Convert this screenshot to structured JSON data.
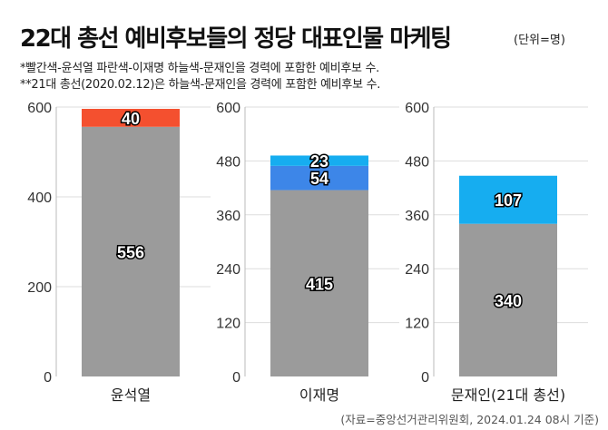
{
  "title": "22대 총선 예비후보들의 정당 대표인물 마케팅",
  "unit": "(단위=명)",
  "notes": [
    "*빨간색-윤석열 파란색-이재명 하늘색-문재인을 경력에 포함한 예비후보 수.",
    "**21대 총선(2020.02.12)은 하늘색-문재인을 경력에 포함한  예비후보 수."
  ],
  "source": "(자료=중앙선거관리위원회, 2024.01.24 08시 기준)",
  "colors": {
    "base": "#9b9b9b",
    "red": "#f4502f",
    "blue": "#3d86e8",
    "sky": "#16adf0",
    "grid": "#dddddd"
  },
  "chart_data": [
    {
      "type": "bar",
      "stacked": true,
      "categories": [
        "윤석열"
      ],
      "ylim": [
        0,
        600
      ],
      "yticks": [
        0,
        200,
        400,
        600
      ],
      "grid": true,
      "series": [
        {
          "values": [
            556
          ],
          "color": "base"
        },
        {
          "values": [
            40
          ],
          "color": "red"
        }
      ]
    },
    {
      "type": "bar",
      "stacked": true,
      "categories": [
        "이재명"
      ],
      "ylim": [
        0,
        600
      ],
      "yticks": [
        0,
        120,
        240,
        360,
        480,
        600
      ],
      "grid": true,
      "series": [
        {
          "values": [
            415
          ],
          "color": "base"
        },
        {
          "values": [
            54
          ],
          "color": "blue"
        },
        {
          "values": [
            23
          ],
          "color": "sky"
        }
      ]
    },
    {
      "type": "bar",
      "stacked": true,
      "categories": [
        "문재인(21대 총선)"
      ],
      "ylim": [
        0,
        600
      ],
      "yticks": [
        0,
        120,
        240,
        360,
        480,
        600
      ],
      "grid": true,
      "series": [
        {
          "values": [
            340
          ],
          "color": "base"
        },
        {
          "values": [
            107
          ],
          "color": "sky"
        }
      ]
    }
  ]
}
